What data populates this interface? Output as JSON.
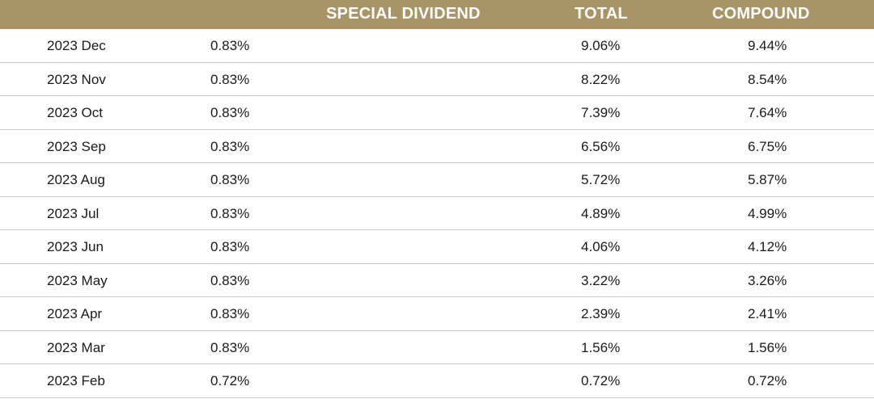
{
  "header": {
    "col1": "",
    "col2": "",
    "col3": "SPECIAL DIVIDEND",
    "col4": "TOTAL",
    "col5": "COMPOUND"
  },
  "rows": [
    {
      "month": "2023 Dec",
      "dividend": "0.83%",
      "special": "",
      "total": "9.06%",
      "compound": "9.44%"
    },
    {
      "month": "2023 Nov",
      "dividend": "0.83%",
      "special": "",
      "total": "8.22%",
      "compound": "8.54%"
    },
    {
      "month": "2023 Oct",
      "dividend": "0.83%",
      "special": "",
      "total": "7.39%",
      "compound": "7.64%"
    },
    {
      "month": "2023 Sep",
      "dividend": "0.83%",
      "special": "",
      "total": "6.56%",
      "compound": "6.75%"
    },
    {
      "month": "2023 Aug",
      "dividend": "0.83%",
      "special": "",
      "total": "5.72%",
      "compound": "5.87%"
    },
    {
      "month": "2023 Jul",
      "dividend": "0.83%",
      "special": "",
      "total": "4.89%",
      "compound": "4.99%"
    },
    {
      "month": "2023 Jun",
      "dividend": "0.83%",
      "special": "",
      "total": "4.06%",
      "compound": "4.12%"
    },
    {
      "month": "2023 May",
      "dividend": "0.83%",
      "special": "",
      "total": "3.22%",
      "compound": "3.26%"
    },
    {
      "month": "2023 Apr",
      "dividend": "0.83%",
      "special": "",
      "total": "2.39%",
      "compound": "2.41%"
    },
    {
      "month": "2023 Mar",
      "dividend": "0.83%",
      "special": "",
      "total": "1.56%",
      "compound": "1.56%"
    },
    {
      "month": "2023 Feb",
      "dividend": "0.72%",
      "special": "",
      "total": "0.72%",
      "compound": "0.72%"
    }
  ],
  "colors": {
    "header_bg": "#a89464",
    "header_text": "#ffffff",
    "row_border": "#c8c8c8"
  }
}
